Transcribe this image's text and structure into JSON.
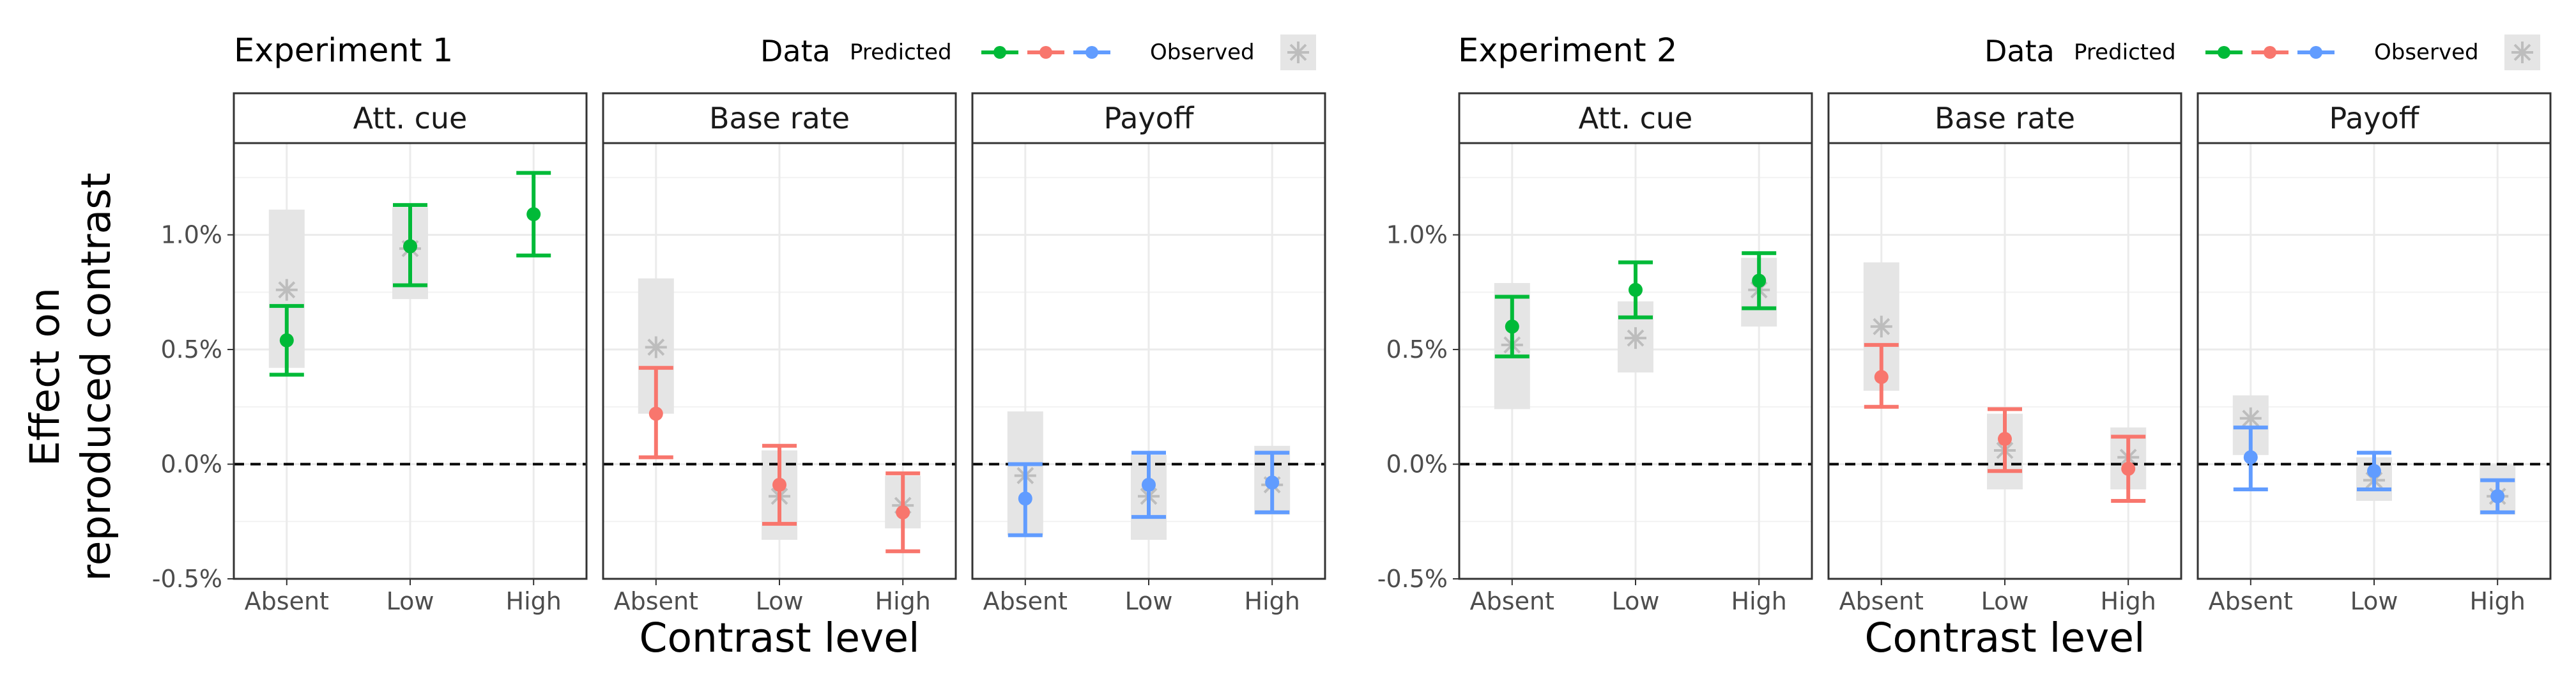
{
  "y_axis_title": [
    "Effect on",
    "reproduced contrast"
  ],
  "legend": {
    "title": "Data",
    "predicted_label": "Predicted",
    "observed_label": "Observed"
  },
  "colors": {
    "Att. cue": "#00BA38",
    "Base rate": "#F8766D",
    "Payoff": "#619CFF",
    "observed": "#bdbdbd",
    "observed_band": "#e5e5e5"
  },
  "chart_data": [
    {
      "type": "errorbar",
      "title": "Experiment 1",
      "xlabel": "Contrast level",
      "ylabel": "Effect on reproduced contrast",
      "y_unit": "%",
      "ylim": [
        -0.5,
        1.4
      ],
      "yticks": [
        -0.5,
        0.0,
        0.5,
        1.0
      ],
      "ytick_labels": [
        "-0.5%",
        "0.0%",
        "0.5%",
        "1.0%"
      ],
      "reference_line": 0.0,
      "categories": [
        "Absent",
        "Low",
        "High"
      ],
      "panels": [
        {
          "facet": "Att. cue",
          "predicted": [
            {
              "level": "Absent",
              "mean": 0.54,
              "lower": 0.39,
              "upper": 0.69
            },
            {
              "level": "Low",
              "mean": 0.95,
              "lower": 0.78,
              "upper": 1.13
            },
            {
              "level": "High",
              "mean": 1.09,
              "lower": 0.91,
              "upper": 1.27
            }
          ],
          "observed": [
            {
              "level": "Absent",
              "mean": 0.76,
              "lower": 0.42,
              "upper": 1.11
            },
            {
              "level": "Low",
              "mean": 0.94,
              "lower": 0.72,
              "upper": 1.12
            },
            {
              "level": "High",
              "mean": null,
              "lower": null,
              "upper": null
            }
          ]
        },
        {
          "facet": "Base rate",
          "predicted": [
            {
              "level": "Absent",
              "mean": 0.22,
              "lower": 0.03,
              "upper": 0.42
            },
            {
              "level": "Low",
              "mean": -0.09,
              "lower": -0.26,
              "upper": 0.08
            },
            {
              "level": "High",
              "mean": -0.21,
              "lower": -0.38,
              "upper": -0.04
            }
          ],
          "observed": [
            {
              "level": "Absent",
              "mean": 0.51,
              "lower": 0.22,
              "upper": 0.81
            },
            {
              "level": "Low",
              "mean": -0.14,
              "lower": -0.33,
              "upper": 0.06
            },
            {
              "level": "High",
              "mean": -0.18,
              "lower": -0.28,
              "upper": -0.05
            }
          ]
        },
        {
          "facet": "Payoff",
          "predicted": [
            {
              "level": "Absent",
              "mean": -0.15,
              "lower": -0.31,
              "upper": 0.0
            },
            {
              "level": "Low",
              "mean": -0.09,
              "lower": -0.23,
              "upper": 0.05
            },
            {
              "level": "High",
              "mean": -0.08,
              "lower": -0.21,
              "upper": 0.05
            }
          ],
          "observed": [
            {
              "level": "Absent",
              "mean": -0.05,
              "lower": -0.31,
              "upper": 0.23
            },
            {
              "level": "Low",
              "mean": -0.14,
              "lower": -0.33,
              "upper": 0.04
            },
            {
              "level": "High",
              "mean": -0.09,
              "lower": -0.22,
              "upper": 0.08
            }
          ]
        }
      ]
    },
    {
      "type": "errorbar",
      "title": "Experiment 2",
      "xlabel": "Contrast level",
      "ylabel": "Effect on reproduced contrast",
      "y_unit": "%",
      "ylim": [
        -0.5,
        1.4
      ],
      "yticks": [
        -0.5,
        0.0,
        0.5,
        1.0
      ],
      "ytick_labels": [
        "-0.5%",
        "0.0%",
        "0.5%",
        "1.0%"
      ],
      "reference_line": 0.0,
      "categories": [
        "Absent",
        "Low",
        "High"
      ],
      "panels": [
        {
          "facet": "Att. cue",
          "predicted": [
            {
              "level": "Absent",
              "mean": 0.6,
              "lower": 0.47,
              "upper": 0.73
            },
            {
              "level": "Low",
              "mean": 0.76,
              "lower": 0.64,
              "upper": 0.88
            },
            {
              "level": "High",
              "mean": 0.8,
              "lower": 0.68,
              "upper": 0.92
            }
          ],
          "observed": [
            {
              "level": "Absent",
              "mean": 0.52,
              "lower": 0.24,
              "upper": 0.79
            },
            {
              "level": "Low",
              "mean": 0.55,
              "lower": 0.4,
              "upper": 0.71
            },
            {
              "level": "High",
              "mean": 0.76,
              "lower": 0.6,
              "upper": 0.9
            }
          ]
        },
        {
          "facet": "Base rate",
          "predicted": [
            {
              "level": "Absent",
              "mean": 0.38,
              "lower": 0.25,
              "upper": 0.52
            },
            {
              "level": "Low",
              "mean": 0.11,
              "lower": -0.03,
              "upper": 0.24
            },
            {
              "level": "High",
              "mean": -0.02,
              "lower": -0.16,
              "upper": 0.12
            }
          ],
          "observed": [
            {
              "level": "Absent",
              "mean": 0.6,
              "lower": 0.32,
              "upper": 0.88
            },
            {
              "level": "Low",
              "mean": 0.06,
              "lower": -0.11,
              "upper": 0.22
            },
            {
              "level": "High",
              "mean": 0.03,
              "lower": -0.11,
              "upper": 0.16
            }
          ]
        },
        {
          "facet": "Payoff",
          "predicted": [
            {
              "level": "Absent",
              "mean": 0.03,
              "lower": -0.11,
              "upper": 0.16
            },
            {
              "level": "Low",
              "mean": -0.03,
              "lower": -0.11,
              "upper": 0.05
            },
            {
              "level": "High",
              "mean": -0.14,
              "lower": -0.21,
              "upper": -0.07
            }
          ],
          "observed": [
            {
              "level": "Absent",
              "mean": 0.2,
              "lower": 0.04,
              "upper": 0.3
            },
            {
              "level": "Low",
              "mean": -0.07,
              "lower": -0.16,
              "upper": 0.03
            },
            {
              "level": "High",
              "mean": -0.14,
              "lower": -0.22,
              "upper": 0.0
            }
          ]
        }
      ]
    }
  ]
}
